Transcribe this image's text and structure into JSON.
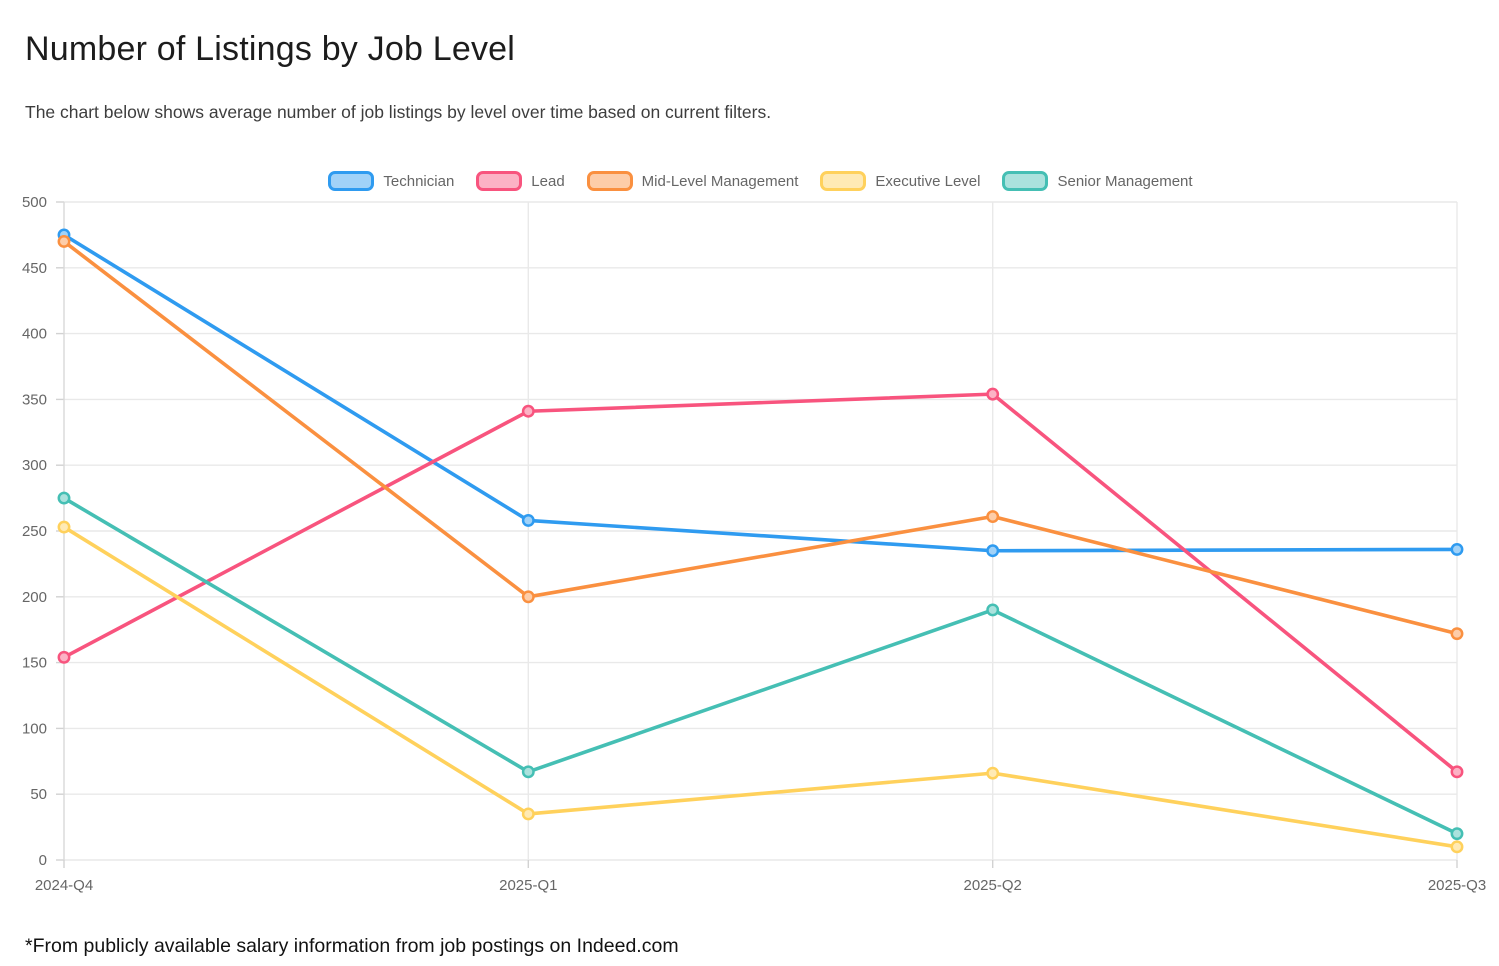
{
  "page": {
    "title": "Number of Listings by Job Level",
    "subtitle": "The chart below shows average number of job listings by level over time based on current filters.",
    "footnote": "*From publicly available salary information from job postings on Indeed.com"
  },
  "chart_data": {
    "type": "line",
    "title": "Number of Listings by Job Level",
    "x_categories": [
      "2024-Q4",
      "2025-Q1",
      "2025-Q2",
      "2025-Q3"
    ],
    "series": [
      {
        "name": "Technician",
        "color": "#2f9bf0",
        "values": [
          475,
          258,
          235,
          236
        ]
      },
      {
        "name": "Lead",
        "color": "#f8547e",
        "values": [
          154,
          341,
          354,
          67
        ]
      },
      {
        "name": "Mid-Level Management",
        "color": "#fa9040",
        "values": [
          470,
          200,
          261,
          172
        ]
      },
      {
        "name": "Executive Level",
        "color": "#ffd15c",
        "values": [
          253,
          35,
          66,
          10
        ]
      },
      {
        "name": "Senior Management",
        "color": "#45bfb4",
        "values": [
          275,
          67,
          190,
          20
        ]
      }
    ],
    "ylim": [
      0,
      500
    ],
    "ytick_step": 50,
    "yticks": [
      0,
      50,
      100,
      150,
      200,
      250,
      300,
      350,
      400,
      450,
      500
    ],
    "xlabel": "",
    "ylabel": "",
    "legend_position": "top",
    "grid": true
  }
}
